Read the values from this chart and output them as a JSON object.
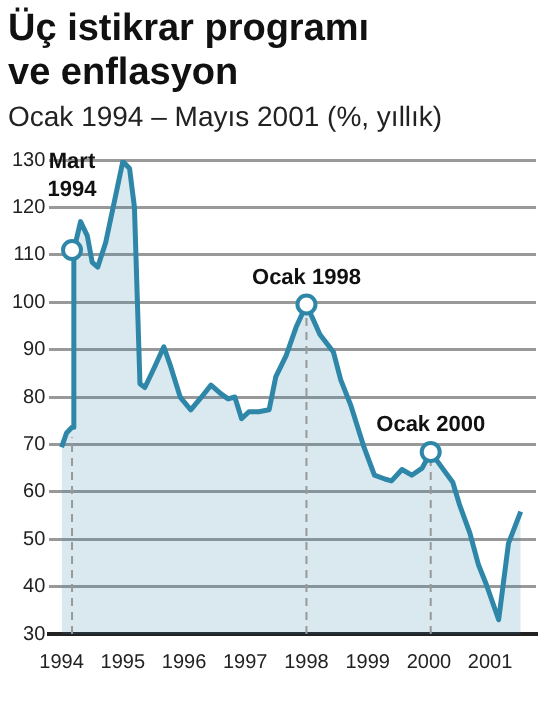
{
  "chart_data": {
    "type": "area",
    "title": "Üç istikrar programı ve enflasyon",
    "subtitle": "Ocak 1994 – Mayıs 2001 (%, yıllık)",
    "x": [
      1994.0,
      1994.08,
      1994.17,
      1994.2,
      1994.31,
      1994.42,
      1994.5,
      1994.59,
      1994.72,
      1994.83,
      1995.0,
      1995.11,
      1995.19,
      1995.28,
      1995.36,
      1995.5,
      1995.67,
      1995.78,
      1995.94,
      1996.11,
      1996.28,
      1996.44,
      1996.61,
      1996.72,
      1996.83,
      1996.94,
      1997.06,
      1997.22,
      1997.39,
      1997.5,
      1997.67,
      1997.83,
      1998.0,
      1998.22,
      1998.44,
      1998.56,
      1998.72,
      1998.94,
      1999.11,
      1999.28,
      1999.39,
      1999.56,
      1999.72,
      1999.89,
      2000.03,
      2000.22,
      2000.39,
      2000.5,
      2000.67,
      2000.81,
      2000.94,
      2001.14,
      2001.3,
      2001.5
    ],
    "series": [
      {
        "color": "#2e86a8",
        "values": [
          69.4,
          72.4,
          73.6,
          111,
          117,
          114,
          108.4,
          107.4,
          112.6,
          119.3,
          129.7,
          128.2,
          120,
          82.8,
          82,
          85.8,
          90.6,
          86.5,
          79.9,
          77.3,
          79.9,
          82.5,
          80.6,
          79.6,
          80,
          75.4,
          76.9,
          76.9,
          77.3,
          84.3,
          88.8,
          94.7,
          99.5,
          93.2,
          89.5,
          83.6,
          78.4,
          69.4,
          63.5,
          62.7,
          62.3,
          64.7,
          63.5,
          65,
          68.4,
          65,
          62,
          57.3,
          51.3,
          44.6,
          40.4,
          33,
          49.1,
          55.8
        ]
      }
    ],
    "xlim": [
      1993.8,
      2001.75
    ],
    "xticks": [
      1994,
      1995,
      1996,
      1997,
      1998,
      1999,
      2000,
      2001
    ],
    "ylim": [
      30,
      130
    ],
    "yticks": [
      30,
      40,
      50,
      60,
      70,
      80,
      90,
      100,
      110,
      120,
      130
    ],
    "grid": "y",
    "legend": false,
    "ref_lines": [
      {
        "axis": "x",
        "value": 1994.17,
        "color": "#999999",
        "line_style": "dashed"
      },
      {
        "axis": "x",
        "value": 1998.0,
        "color": "#999999",
        "line_style": "dashed"
      },
      {
        "axis": "x",
        "value": 2000.03,
        "color": "#999999",
        "line_style": "dashed"
      }
    ],
    "annotations": [
      {
        "text": "Mart 1994",
        "x": 1994.17,
        "y": 111
      },
      {
        "text": "Ocak 1998",
        "x": 1998.0,
        "y": 99.5
      },
      {
        "text": "Ocak 2000",
        "x": 2000.03,
        "y": 68.4
      }
    ]
  }
}
